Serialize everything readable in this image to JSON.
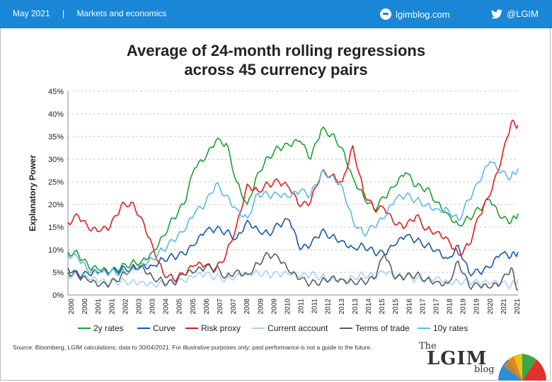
{
  "header": {
    "date": "May 2021",
    "separator": "|",
    "section": "Markets and economics",
    "site": "lgimblog.com",
    "twitter_handle": "@LGIM",
    "background_color": "#1a86d6"
  },
  "footer": {
    "source": "Source: Bloomberg, LGIM calculations; data to 30/04/2021. For illustrative purposes only; past performance is not a guide to the future.",
    "logo_the": "The",
    "logo_main": "LGIM",
    "logo_blog": "blog"
  },
  "chart_data": {
    "type": "line",
    "title_line1": "Average of 24-month rolling regressions",
    "title_line2": "across 45 currency pairs",
    "ylabel": "Explanatory Power",
    "ylim": [
      0,
      45
    ],
    "yticks": [
      "0%",
      "5%",
      "10%",
      "15%",
      "20%",
      "25%",
      "30%",
      "35%",
      "40%",
      "45%"
    ],
    "xlim": [
      2000.0,
      2021.33
    ],
    "xticks": [
      "2000",
      "2000",
      "2001",
      "2001",
      "2002",
      "2003",
      "2003",
      "2004",
      "2005",
      "2005",
      "2006",
      "2007",
      "2007",
      "2008",
      "2009",
      "2009",
      "2010",
      "2011",
      "2011",
      "2012",
      "2013",
      "2013",
      "2014",
      "2015",
      "2015",
      "2016",
      "2017",
      "2017",
      "2018",
      "2019",
      "2019",
      "2020",
      "2021",
      "2021"
    ],
    "legend_position": "bottom",
    "grid": "horizontal-dashed",
    "series": [
      {
        "name": "2y rates",
        "color": "#1aa12e",
        "x": [
          2000.0,
          2000.5,
          2001.0,
          2001.5,
          2002.0,
          2002.5,
          2003.0,
          2003.5,
          2004.0,
          2004.5,
          2005.0,
          2005.5,
          2006.0,
          2006.5,
          2007.0,
          2007.5,
          2008.0,
          2008.5,
          2009.0,
          2009.5,
          2010.0,
          2010.5,
          2011.0,
          2011.5,
          2012.0,
          2012.5,
          2013.0,
          2013.5,
          2014.0,
          2014.5,
          2015.0,
          2015.5,
          2016.0,
          2016.5,
          2017.0,
          2017.5,
          2018.0,
          2018.5,
          2019.0,
          2019.5,
          2020.0,
          2020.5,
          2021.0,
          2021.33
        ],
        "values": [
          9.5,
          9.0,
          6.0,
          5.5,
          5.0,
          6.0,
          7.0,
          7.5,
          9.5,
          13.0,
          17.0,
          20.0,
          28.0,
          30.0,
          34.0,
          33.5,
          25.0,
          20.0,
          27.0,
          30.5,
          32.5,
          33.0,
          34.0,
          30.0,
          36.5,
          35.5,
          32.5,
          26.0,
          22.0,
          19.0,
          21.5,
          24.0,
          27.0,
          24.0,
          23.5,
          20.5,
          18.0,
          15.5,
          17.0,
          19.0,
          21.0,
          17.0,
          16.0,
          18.0
        ]
      },
      {
        "name": "Curve",
        "color": "#1558a8",
        "x": [
          2000.0,
          2000.5,
          2001.0,
          2001.5,
          2002.0,
          2002.5,
          2003.0,
          2003.5,
          2004.0,
          2004.5,
          2005.0,
          2005.5,
          2006.0,
          2006.5,
          2007.0,
          2007.5,
          2008.0,
          2008.5,
          2009.0,
          2009.5,
          2010.0,
          2010.5,
          2011.0,
          2011.5,
          2012.0,
          2012.5,
          2013.0,
          2013.5,
          2014.0,
          2014.5,
          2015.0,
          2015.5,
          2016.0,
          2016.5,
          2017.0,
          2017.5,
          2018.0,
          2018.5,
          2019.0,
          2019.5,
          2020.0,
          2020.5,
          2021.0,
          2021.33
        ],
        "values": [
          5.0,
          4.5,
          4.5,
          5.0,
          5.0,
          5.5,
          6.0,
          6.5,
          6.5,
          8.0,
          8.5,
          9.0,
          11.0,
          14.0,
          14.5,
          14.0,
          12.5,
          16.5,
          14.5,
          13.5,
          15.5,
          16.5,
          10.0,
          11.0,
          14.0,
          13.0,
          12.0,
          10.5,
          11.0,
          9.5,
          9.0,
          11.0,
          13.0,
          12.0,
          11.0,
          10.0,
          8.0,
          11.0,
          5.0,
          5.0,
          6.0,
          9.0,
          8.5,
          9.5
        ]
      },
      {
        "name": "Risk proxy",
        "color": "#e31b1b",
        "x": [
          2000.0,
          2000.5,
          2001.0,
          2001.5,
          2002.0,
          2002.5,
          2003.0,
          2003.5,
          2004.0,
          2004.5,
          2005.0,
          2005.5,
          2006.0,
          2006.5,
          2007.0,
          2007.5,
          2008.0,
          2008.5,
          2009.0,
          2009.5,
          2010.0,
          2010.5,
          2011.0,
          2011.5,
          2012.0,
          2012.5,
          2013.0,
          2013.5,
          2014.0,
          2014.5,
          2015.0,
          2015.5,
          2016.0,
          2016.5,
          2017.0,
          2017.5,
          2018.0,
          2018.5,
          2019.0,
          2019.5,
          2020.0,
          2020.5,
          2021.0,
          2021.33
        ],
        "values": [
          16.0,
          17.5,
          14.5,
          14.0,
          15.0,
          19.5,
          20.5,
          17.0,
          11.0,
          5.0,
          3.5,
          4.5,
          6.5,
          6.5,
          5.5,
          9.0,
          15.5,
          24.5,
          23.0,
          24.5,
          25.0,
          23.5,
          19.5,
          20.5,
          27.0,
          26.5,
          25.0,
          33.0,
          23.0,
          19.0,
          19.0,
          15.5,
          15.0,
          17.5,
          14.5,
          14.0,
          12.5,
          9.0,
          11.0,
          17.5,
          22.0,
          29.0,
          38.0,
          37.5
        ]
      },
      {
        "name": "Current account",
        "color": "#a9d2ef",
        "x": [
          2000.0,
          2000.5,
          2001.0,
          2001.5,
          2002.0,
          2002.5,
          2003.0,
          2003.5,
          2004.0,
          2004.5,
          2005.0,
          2005.5,
          2006.0,
          2006.5,
          2007.0,
          2007.5,
          2008.0,
          2008.5,
          2009.0,
          2009.5,
          2010.0,
          2010.5,
          2011.0,
          2011.5,
          2012.0,
          2012.5,
          2013.0,
          2013.5,
          2014.0,
          2014.5,
          2015.0,
          2015.5,
          2016.0,
          2016.5,
          2017.0,
          2017.5,
          2018.0,
          2018.5,
          2019.0,
          2019.5,
          2020.0,
          2020.5,
          2021.0,
          2021.33
        ],
        "values": [
          4.5,
          4.0,
          3.5,
          3.0,
          2.5,
          3.0,
          3.0,
          3.0,
          2.5,
          2.5,
          3.0,
          3.0,
          4.0,
          4.5,
          4.0,
          3.5,
          4.5,
          5.0,
          5.0,
          4.5,
          4.5,
          4.5,
          4.0,
          4.5,
          4.0,
          3.5,
          3.5,
          4.0,
          4.5,
          4.0,
          5.0,
          4.0,
          4.0,
          3.5,
          3.5,
          4.0,
          3.0,
          3.0,
          3.0,
          2.5,
          2.5,
          2.5,
          2.0,
          3.5
        ]
      },
      {
        "name": "Terms of trade",
        "color": "#5b5b5b",
        "x": [
          2000.0,
          2000.5,
          2001.0,
          2001.5,
          2002.0,
          2002.5,
          2003.0,
          2003.5,
          2004.0,
          2004.5,
          2005.0,
          2005.5,
          2006.0,
          2006.5,
          2007.0,
          2007.5,
          2008.0,
          2008.5,
          2009.0,
          2009.5,
          2010.0,
          2010.5,
          2011.0,
          2011.5,
          2012.0,
          2012.5,
          2013.0,
          2013.5,
          2014.0,
          2014.5,
          2015.0,
          2015.5,
          2016.0,
          2016.5,
          2017.0,
          2017.5,
          2018.0,
          2018.5,
          2019.0,
          2019.5,
          2020.0,
          2020.5,
          2021.0,
          2021.33
        ],
        "values": [
          6.0,
          4.0,
          3.0,
          2.0,
          2.5,
          4.0,
          6.0,
          6.5,
          4.0,
          3.0,
          2.5,
          4.5,
          5.0,
          6.0,
          6.0,
          4.0,
          5.5,
          4.5,
          7.0,
          9.0,
          8.0,
          5.0,
          3.5,
          2.5,
          3.0,
          4.0,
          3.5,
          3.0,
          3.0,
          3.5,
          9.0,
          3.5,
          4.0,
          4.5,
          3.5,
          3.0,
          2.5,
          7.5,
          2.0,
          2.0,
          1.5,
          2.5,
          6.0,
          1.0
        ]
      },
      {
        "name": "10y rates",
        "color": "#5bb8e8",
        "x": [
          2000.0,
          2000.5,
          2001.0,
          2001.5,
          2002.0,
          2002.5,
          2003.0,
          2003.5,
          2004.0,
          2004.5,
          2005.0,
          2005.5,
          2006.0,
          2006.5,
          2007.0,
          2007.5,
          2008.0,
          2008.5,
          2009.0,
          2009.5,
          2010.0,
          2010.5,
          2011.0,
          2011.5,
          2012.0,
          2012.5,
          2013.0,
          2013.5,
          2014.0,
          2014.5,
          2015.0,
          2015.5,
          2016.0,
          2016.5,
          2017.0,
          2017.5,
          2018.0,
          2018.5,
          2019.0,
          2019.5,
          2020.0,
          2020.5,
          2021.0,
          2021.33
        ],
        "values": [
          9.0,
          8.0,
          5.0,
          5.0,
          5.0,
          5.0,
          5.5,
          7.0,
          8.0,
          10.0,
          12.0,
          14.0,
          18.0,
          20.0,
          24.5,
          22.0,
          19.0,
          17.0,
          22.5,
          22.0,
          22.0,
          21.5,
          23.0,
          22.0,
          27.0,
          26.5,
          24.0,
          16.5,
          13.5,
          15.0,
          17.0,
          21.0,
          22.0,
          21.0,
          20.0,
          19.0,
          19.0,
          16.5,
          21.0,
          25.0,
          29.5,
          27.0,
          26.0,
          28.0
        ]
      }
    ]
  }
}
